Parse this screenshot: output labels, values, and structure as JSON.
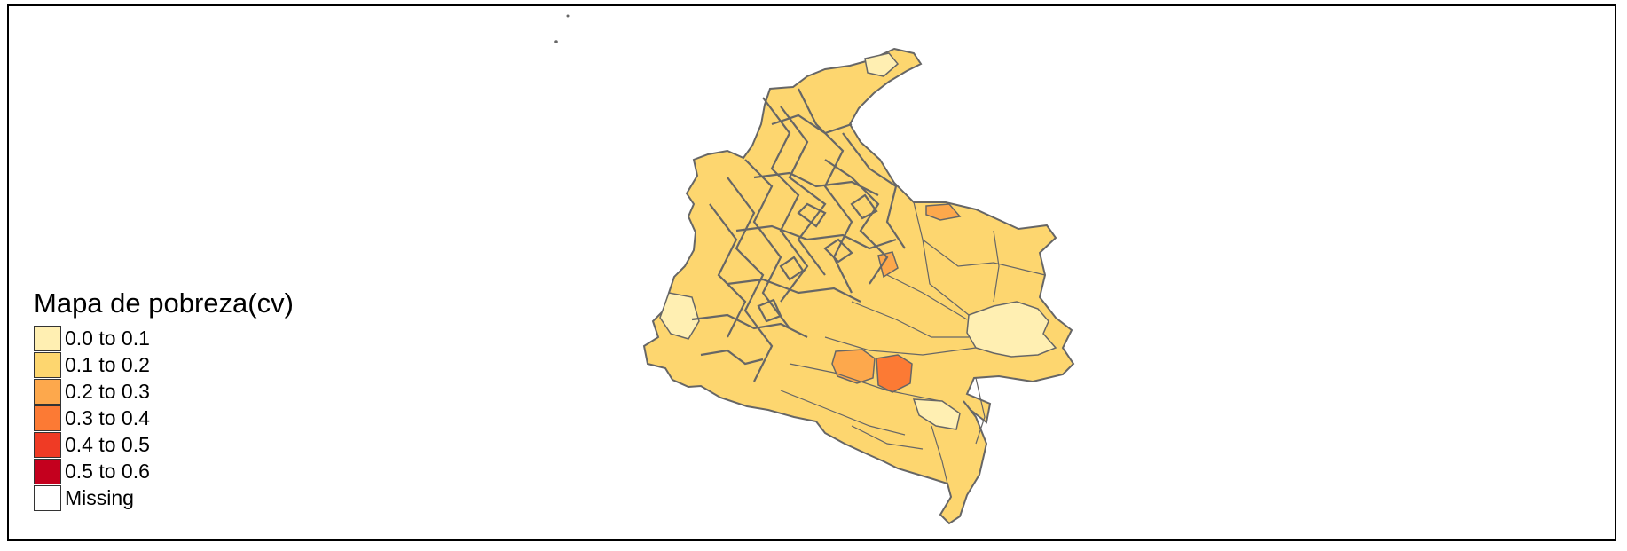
{
  "map": {
    "legend": {
      "title": "Mapa de pobreza(cv)",
      "classes": [
        {
          "label": "0.0 to 0.1",
          "color": "#ffefb2"
        },
        {
          "label": "0.1 to 0.2",
          "color": "#fdd66f"
        },
        {
          "label": "0.2 to 0.3",
          "color": "#fda84c"
        },
        {
          "label": "0.3 to 0.4",
          "color": "#fc7a34"
        },
        {
          "label": "0.4 to 0.5",
          "color": "#ef3b25"
        },
        {
          "label": "0.5 to 0.6",
          "color": "#c4001e"
        },
        {
          "label": "Missing",
          "color": "#ffffff"
        }
      ]
    },
    "colors": {
      "border": "#666666",
      "frame": "#000000",
      "background": "#ffffff"
    }
  }
}
